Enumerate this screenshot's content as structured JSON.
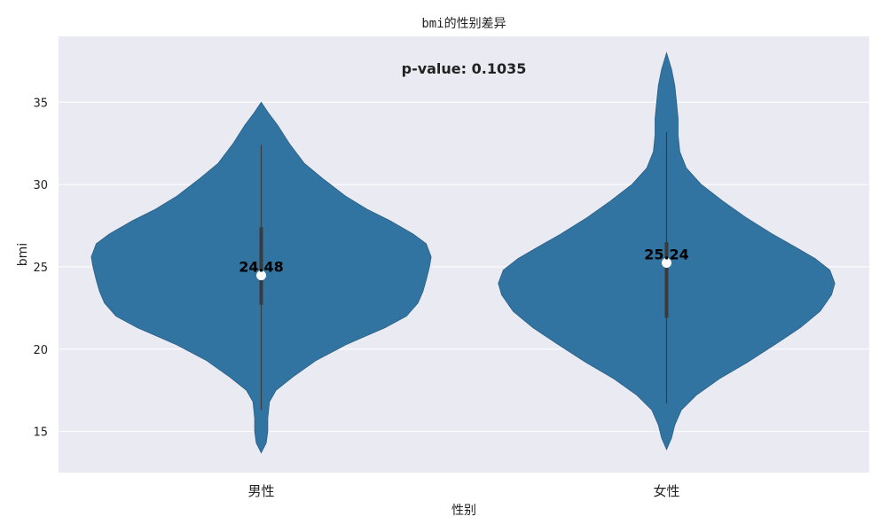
{
  "chart_data": {
    "type": "violin",
    "title": "bmi的性别差异",
    "xlabel": "性别",
    "ylabel": "bmi",
    "ylim": [
      12.5,
      39
    ],
    "yticks": [
      15,
      20,
      25,
      30,
      35
    ],
    "grid": true,
    "categories": [
      "男性",
      "女性"
    ],
    "annotation": "p-value: 0.1035",
    "colors": {
      "violin": "#3274a1",
      "plot_bg": "#eaeaf2",
      "grid": "#ffffff",
      "box": "#3a3a3a",
      "median_point": "#ffffff"
    },
    "series": [
      {
        "category": "男性",
        "median": 24.48,
        "median_label": "24.48",
        "q1": 22.7,
        "q3": 27.4,
        "whisker_low": 16.3,
        "whisker_high": 32.4,
        "min": 13.7,
        "max": 35.0,
        "density": [
          [
            13.7,
            0.0
          ],
          [
            14.3,
            0.03
          ],
          [
            15.0,
            0.04
          ],
          [
            15.8,
            0.04
          ],
          [
            16.8,
            0.05
          ],
          [
            17.5,
            0.09
          ],
          [
            18.3,
            0.19
          ],
          [
            19.3,
            0.33
          ],
          [
            20.3,
            0.52
          ],
          [
            21.3,
            0.75
          ],
          [
            22.0,
            0.88
          ],
          [
            22.8,
            0.95
          ],
          [
            23.5,
            0.98
          ],
          [
            24.2,
            1.0
          ],
          [
            25.0,
            1.02
          ],
          [
            25.6,
            1.03
          ],
          [
            26.4,
            1.0
          ],
          [
            27.0,
            0.92
          ],
          [
            27.8,
            0.78
          ],
          [
            28.5,
            0.64
          ],
          [
            29.3,
            0.51
          ],
          [
            30.3,
            0.38
          ],
          [
            31.3,
            0.26
          ],
          [
            32.5,
            0.17
          ],
          [
            33.6,
            0.1
          ],
          [
            34.4,
            0.04
          ],
          [
            35.0,
            0.0
          ]
        ]
      },
      {
        "category": "女性",
        "median": 25.24,
        "median_label": "25.24",
        "q1": 21.9,
        "q3": 26.5,
        "whisker_low": 16.7,
        "whisker_high": 33.2,
        "min": 13.9,
        "max": 38.0,
        "density": [
          [
            13.9,
            0.0
          ],
          [
            14.6,
            0.03
          ],
          [
            15.4,
            0.05
          ],
          [
            16.3,
            0.09
          ],
          [
            17.2,
            0.18
          ],
          [
            18.2,
            0.32
          ],
          [
            19.2,
            0.49
          ],
          [
            20.3,
            0.66
          ],
          [
            21.3,
            0.81
          ],
          [
            22.3,
            0.93
          ],
          [
            23.3,
            1.0
          ],
          [
            24.0,
            1.02
          ],
          [
            24.8,
            0.99
          ],
          [
            25.5,
            0.9
          ],
          [
            26.2,
            0.78
          ],
          [
            27.0,
            0.64
          ],
          [
            28.0,
            0.48
          ],
          [
            29.0,
            0.34
          ],
          [
            30.0,
            0.21
          ],
          [
            31.0,
            0.12
          ],
          [
            32.0,
            0.08
          ],
          [
            33.0,
            0.07
          ],
          [
            34.0,
            0.07
          ],
          [
            35.0,
            0.06
          ],
          [
            36.0,
            0.05
          ],
          [
            37.0,
            0.03
          ],
          [
            38.0,
            0.0
          ]
        ]
      }
    ]
  }
}
